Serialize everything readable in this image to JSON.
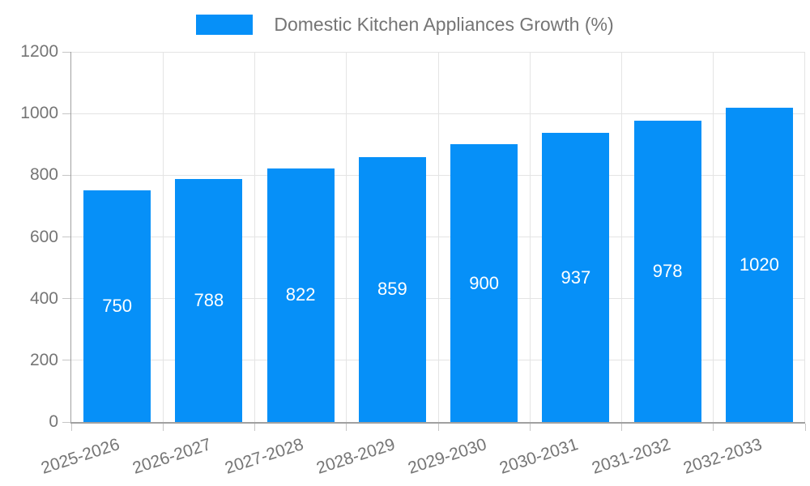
{
  "chart_data": {
    "type": "bar",
    "title": "Domestic Kitchen Appliances Growth (%)",
    "categories": [
      "2025-2026",
      "2026-2027",
      "2027-2028",
      "2028-2029",
      "2029-2030",
      "2030-2031",
      "2031-2032",
      "2032-2033"
    ],
    "values": [
      750,
      788,
      822,
      859,
      900,
      937,
      978,
      1020
    ],
    "value_labels": [
      "750",
      "788",
      "822",
      "859",
      "900",
      "937",
      "978",
      "1020"
    ],
    "y_ticks": [
      0,
      200,
      400,
      600,
      800,
      1000,
      1200
    ],
    "ylim": [
      0,
      1200
    ],
    "xlabel": "",
    "ylabel": "",
    "grid": true,
    "legend_position": "top",
    "colors": {
      "bar": "#0690f8",
      "bar_value_text": "#ffffff",
      "axis_text": "#757575",
      "legend_text": "#757575",
      "gridline": "#e4e4e4",
      "axis_line": "#a0a0a0",
      "tick": "#c6c6c6",
      "background": "#ffffff"
    }
  }
}
